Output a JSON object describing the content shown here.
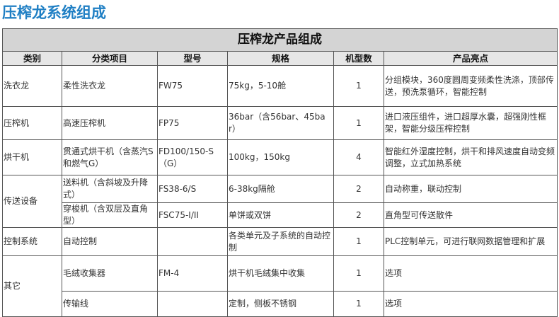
{
  "page_title": "压榨龙系统组成",
  "table": {
    "caption": "压榨龙产品组成",
    "headers": [
      "类别",
      "分类项目",
      "型号",
      "规格",
      "机型数",
      "产品亮点"
    ],
    "rows": [
      {
        "category": "洗衣龙",
        "item": "柔性洗衣龙",
        "model": "FW75",
        "spec": "75kg，5-10舱",
        "count": "1",
        "highlight": "分组模块，360度圆周变频柔性洗涤，顶部传送，预洗泵循环，智能控制"
      },
      {
        "category": "压榨机",
        "item": "高速压榨机",
        "model": "FP75",
        "spec": "36bar（含56bar、45bar）",
        "count": "1",
        "highlight": "进口液压组件，进口超厚水囊，超强刚性框架，智能分级压榨控制"
      },
      {
        "category": "烘干机",
        "item": "贯通式烘干机（含蒸汽S和燃气G）",
        "model": "FD100/150-S（G）",
        "spec": "100kg，150kg",
        "count": "4",
        "highlight": "智能红外湿度控制，烘干和排风速度自动变频调整，立式加热系统"
      },
      {
        "category": "传送设备",
        "item": "送料机（含斜坡及升降式）",
        "model": "FS38-6/S",
        "spec": "6-38kg隔舱",
        "count": "2",
        "highlight": "自动称重，联动控制"
      },
      {
        "category": "",
        "item": "穿梭机（含双层及直角型）",
        "model": "FSC75-I/II",
        "spec": "单饼或双饼",
        "count": "2",
        "highlight": "直角型可传送散件"
      },
      {
        "category": "控制系统",
        "item": "自动控制",
        "model": "",
        "spec": "各类单元及子系统的自动控制",
        "count": "1",
        "highlight": "PLC控制单元，可进行联网数据管理和扩展"
      },
      {
        "category": "其它",
        "item": "毛绒收集器",
        "model": "FM-4",
        "spec": "烘干机毛绒集中收集",
        "count": "1",
        "highlight": "选项"
      },
      {
        "category": "",
        "item": "传输线",
        "model": "",
        "spec": "定制，侧板不锈钢",
        "count": "1",
        "highlight": "选项"
      }
    ]
  }
}
